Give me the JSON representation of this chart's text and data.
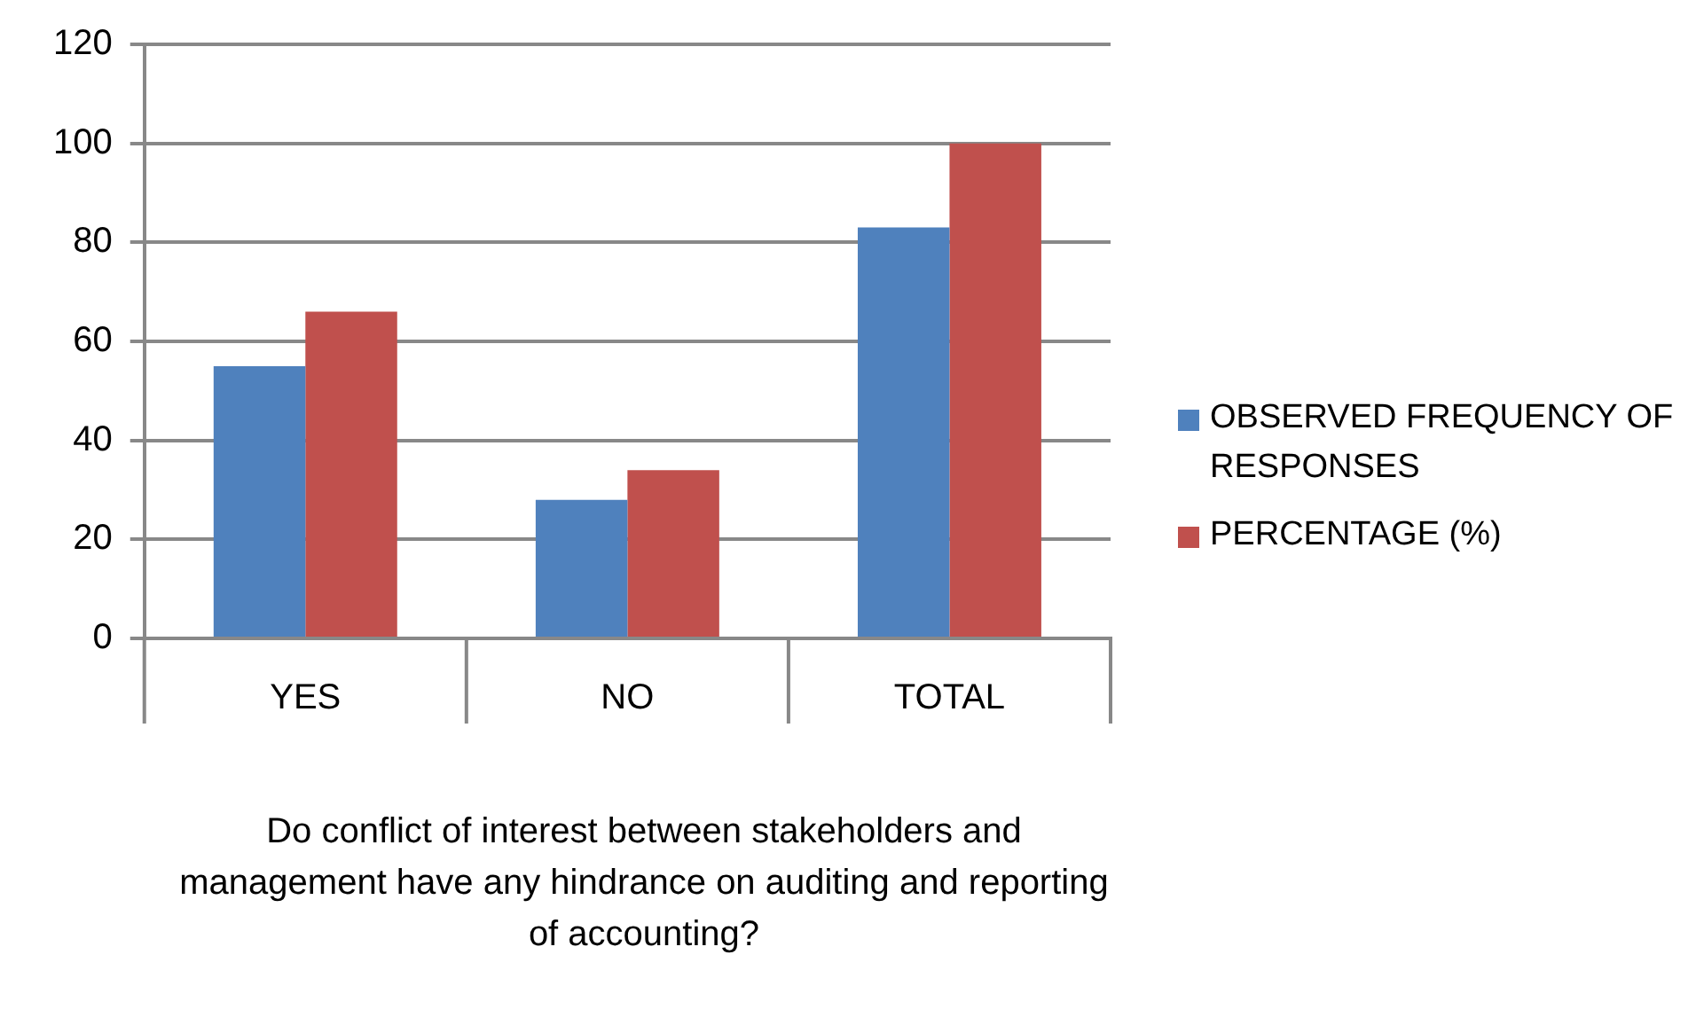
{
  "chart_data": {
    "type": "bar",
    "xlabel": "Do conflict of interest between stakeholders and management have any hindrance on auditing and reporting of accounting?",
    "categories": [
      "YES",
      "NO",
      "TOTAL"
    ],
    "series": [
      {
        "name": "OBSERVED FREQUENCY OF RESPONSES",
        "color": "#4f81bd",
        "values": [
          55,
          28,
          83
        ]
      },
      {
        "name": "PERCENTAGE (%)",
        "color": "#c0504d",
        "values": [
          66,
          34,
          100
        ]
      }
    ],
    "ylim": [
      0,
      120
    ],
    "yticks": [
      0,
      20,
      40,
      60,
      80,
      100,
      120
    ],
    "grid": "y",
    "legend": "right"
  }
}
